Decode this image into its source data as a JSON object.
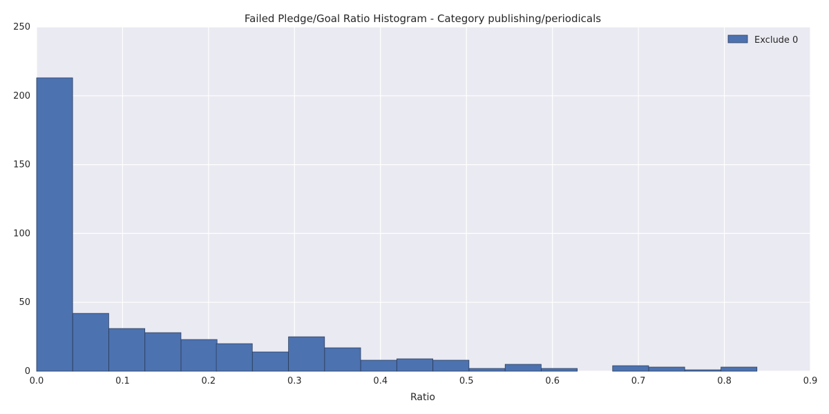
{
  "chart_data": {
    "type": "bar",
    "title": "Failed Pledge/Goal Ratio Histogram - Category publishing/periodicals",
    "xlabel": "Ratio",
    "ylabel": "",
    "xlim": [
      0,
      0.9
    ],
    "ylim": [
      0,
      250
    ],
    "x_ticks": [
      "0.0",
      "0.1",
      "0.2",
      "0.3",
      "0.4",
      "0.5",
      "0.6",
      "0.7",
      "0.8",
      "0.9"
    ],
    "y_ticks": [
      "0",
      "50",
      "100",
      "150",
      "200",
      "250"
    ],
    "grid": true,
    "legend_position": "top-right",
    "bin_width": 0.0419,
    "series": [
      {
        "name": "Exclude 0",
        "color": "#4c72b0",
        "bins": [
          {
            "x0": 0.0,
            "count": 213
          },
          {
            "x0": 0.042,
            "count": 42
          },
          {
            "x0": 0.084,
            "count": 31
          },
          {
            "x0": 0.126,
            "count": 28
          },
          {
            "x0": 0.168,
            "count": 23
          },
          {
            "x0": 0.209,
            "count": 20
          },
          {
            "x0": 0.251,
            "count": 14
          },
          {
            "x0": 0.293,
            "count": 25
          },
          {
            "x0": 0.335,
            "count": 17
          },
          {
            "x0": 0.377,
            "count": 8
          },
          {
            "x0": 0.419,
            "count": 9
          },
          {
            "x0": 0.461,
            "count": 8
          },
          {
            "x0": 0.503,
            "count": 2
          },
          {
            "x0": 0.545,
            "count": 5
          },
          {
            "x0": 0.587,
            "count": 2
          },
          {
            "x0": 0.628,
            "count": 0
          },
          {
            "x0": 0.67,
            "count": 4
          },
          {
            "x0": 0.712,
            "count": 3
          },
          {
            "x0": 0.754,
            "count": 1
          },
          {
            "x0": 0.796,
            "count": 3
          }
        ]
      }
    ]
  },
  "colors": {
    "plot_background": "#eaeaf2",
    "grid": "#ffffff",
    "bar_edge": "#2d3e5c"
  }
}
